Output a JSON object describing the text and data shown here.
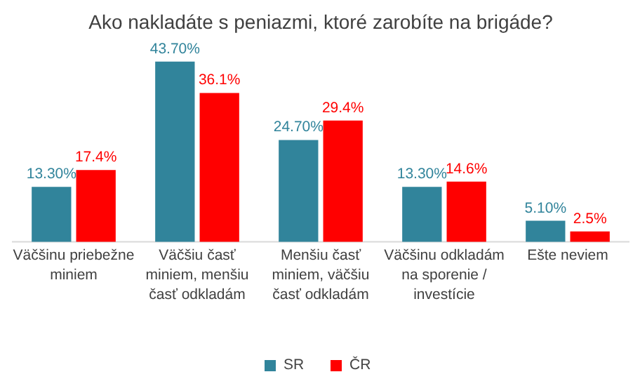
{
  "chart_data": {
    "type": "bar",
    "title": "Ako nakladáte s peniazmi, ktoré zarobíte na brigáde?",
    "categories": [
      "Väčšinu priebežne miniem",
      "Väčšiu časť miniem, menšiu časť odkladám",
      "Menšiu časť miniem, väčšiu časť odkladám",
      "Väčšinu odkladám na sporenie / investície",
      "Ešte neviem"
    ],
    "series": [
      {
        "name": "SR",
        "color": "#31849b",
        "values": [
          13.3,
          43.7,
          24.7,
          13.3,
          5.1
        ],
        "value_labels": [
          "13.30%",
          "43.70%",
          "24.70%",
          "13.30%",
          "5.10%"
        ]
      },
      {
        "name": "ČR",
        "color": "#ff0000",
        "values": [
          17.4,
          36.1,
          29.4,
          14.6,
          2.5
        ],
        "value_labels": [
          "17.4%",
          "36.1%",
          "29.4%",
          "14.6%",
          "2.5%"
        ]
      }
    ],
    "legend": "bottom"
  }
}
